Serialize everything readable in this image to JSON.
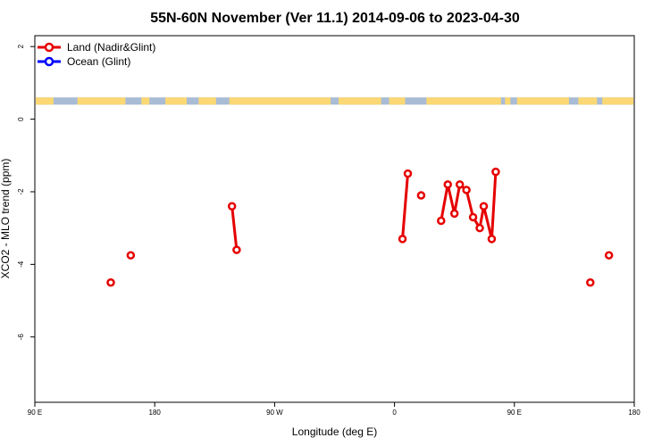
{
  "chart_data": {
    "type": "line",
    "title": "55N-60N November (Ver 11.1)   2014-09-06 to 2023-04-30",
    "xlabel": "Longitude (deg E)",
    "ylabel": "XCO2 - MLO trend (ppm)",
    "x_ticks": [
      {
        "value": 90,
        "label": "90 E"
      },
      {
        "value": 180,
        "label": "180"
      },
      {
        "value": 270,
        "label": "90 W"
      },
      {
        "value": 360,
        "label": "0"
      },
      {
        "value": 450,
        "label": "90 E"
      },
      {
        "value": 540,
        "label": "180"
      }
    ],
    "y_ticks": [
      {
        "value": 2,
        "label": "2"
      },
      {
        "value": 0,
        "label": "0"
      },
      {
        "value": -2,
        "label": "-2"
      },
      {
        "value": -4,
        "label": "-4"
      },
      {
        "value": -6,
        "label": "-6"
      }
    ],
    "xlim": [
      90,
      540
    ],
    "ylim": [
      -7.8,
      2.3
    ],
    "legend_position": "top-left",
    "map_strip": {
      "y_top": 0.6,
      "y_bottom": 0.4,
      "ocean_color": "#a9bcd6",
      "land_color": "#fcd874"
    },
    "series": [
      {
        "name": "Land (Nadir&Glint)",
        "color": "#e60000",
        "segments": [
          [
            [
              147,
              -4.5
            ]
          ],
          [
            [
              162,
              -3.75
            ]
          ],
          [
            [
              238,
              -2.4
            ],
            [
              241.5,
              -3.6
            ]
          ],
          [
            [
              366,
              -3.3
            ],
            [
              370,
              -1.5
            ]
          ],
          [
            [
              380,
              -2.1
            ]
          ],
          [
            [
              395,
              -2.8
            ],
            [
              400,
              -1.8
            ],
            [
              405,
              -2.6
            ],
            [
              409,
              -1.8
            ],
            [
              414,
              -1.95
            ],
            [
              419,
              -2.7
            ],
            [
              424,
              -3.0
            ],
            [
              427,
              -2.4
            ],
            [
              433,
              -3.3
            ],
            [
              436,
              -1.45
            ]
          ],
          [
            [
              507,
              -4.5
            ]
          ],
          [
            [
              521,
              -3.75
            ]
          ]
        ]
      },
      {
        "name": "Ocean (Glint)",
        "color": "#0000ff",
        "segments": []
      }
    ]
  }
}
